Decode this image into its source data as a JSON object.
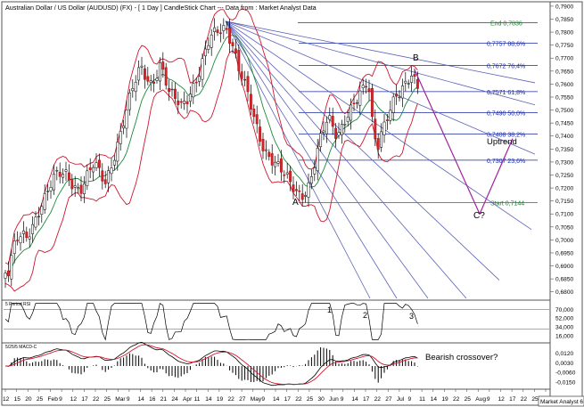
{
  "chart_data": {
    "type": "candlestick",
    "title": "Australian Dollar / US Dollar (AUDUSD) (FX) - [ 1 Day ] CandleStick Chart --- Data from : Market Analyst Data",
    "price_axis": {
      "range": [
        0.6775,
        0.791
      ],
      "ticks": [
        "0,7900",
        "0,7850",
        "0,7800",
        "0,7750",
        "0,7700",
        "0,7650",
        "0,7600",
        "0,7550",
        "0,7500",
        "0,7450",
        "0,7400",
        "0,7350",
        "0,7300",
        "0,7250",
        "0,7200",
        "0,7150",
        "0,7100",
        "0,7050",
        "0,7000",
        "0,6950",
        "0,6900",
        "0,6850",
        "0,6800"
      ],
      "tick_values": [
        0.79,
        0.785,
        0.78,
        0.775,
        0.77,
        0.765,
        0.76,
        0.755,
        0.75,
        0.745,
        0.74,
        0.735,
        0.73,
        0.725,
        0.72,
        0.715,
        0.71,
        0.705,
        0.7,
        0.695,
        0.69,
        0.685,
        0.68
      ]
    },
    "fib_levels": [
      {
        "label": "End 0,7836",
        "value": 0.7836,
        "color": "#0a8a2a"
      },
      {
        "label": "0,7757 88,6%",
        "value": 0.7757,
        "color": "#1a2aa0"
      },
      {
        "label": "0,7672 76,4%",
        "value": 0.7672,
        "color": "#1a2aa0"
      },
      {
        "label": "0,7571 61,8%",
        "value": 0.7571,
        "color": "#1a2aa0"
      },
      {
        "label": "0,7490 50,0%",
        "value": 0.749,
        "color": "#1a2aa0"
      },
      {
        "label": "0,7408 38,2%",
        "value": 0.7408,
        "color": "#1a2aa0"
      },
      {
        "label": "0,7307 23,6%",
        "value": 0.7307,
        "color": "#1a2aa0"
      },
      {
        "label": "Start 0,7144",
        "value": 0.7144,
        "color": "#0a8a2a"
      }
    ],
    "annotations": {
      "point_a": "A",
      "point_b": "B",
      "point_c": "C?",
      "uptrend": "Uptrend",
      "rsi_wave_1": "1",
      "rsi_wave_2": "2",
      "rsi_wave_3": "3",
      "bearish": "Bearish crossover?"
    },
    "rsi": {
      "title": "5 Period RSI",
      "ticks": [
        "70,000",
        "52,000",
        "34,000",
        "16,000"
      ],
      "tick_values": [
        70,
        52,
        34,
        16
      ],
      "range": [
        5,
        85
      ]
    },
    "macd": {
      "title": "5/25/5 MACD-C",
      "ticks": [
        "0,0120",
        "0,0030",
        "-0,0060",
        "-0,0150"
      ],
      "tick_values": [
        0.012,
        0.003,
        -0.006,
        -0.015
      ],
      "range": [
        -0.02,
        0.02
      ]
    },
    "x_axis": {
      "labels": [
        "12",
        "15",
        "20",
        "25",
        "Feb",
        "9",
        "12",
        "17",
        "22",
        "25",
        "Mar",
        "9",
        "14",
        "16",
        "21",
        "24",
        "Apr",
        "11",
        "14",
        "19",
        "22",
        "27",
        "May",
        "9",
        "14",
        "17",
        "22",
        "25",
        "30",
        "Jun",
        "9",
        "14",
        "17",
        "22",
        "27",
        "Jul",
        "9",
        "11",
        "14",
        "19",
        "22",
        "25",
        "Aug",
        "9",
        "12",
        "17",
        "22",
        "25",
        "Se"
      ],
      "date_range": "2017-01-12 to 2017-09"
    },
    "watermark": "Market Analyst 6"
  }
}
